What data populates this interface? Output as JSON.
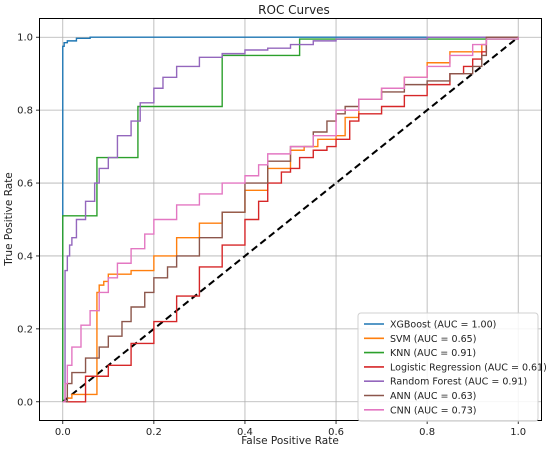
{
  "chart_data": {
    "type": "line",
    "title": "ROC Curves",
    "xlabel": "False Positive Rate",
    "ylabel": "True Positive Rate",
    "xlim": [
      -0.05,
      1.05
    ],
    "ylim": [
      -0.05,
      1.05
    ],
    "xticks": [
      "0.0",
      "0.2",
      "0.4",
      "0.6",
      "0.8",
      "1.0"
    ],
    "yticks": [
      "0.0",
      "0.2",
      "0.4",
      "0.6",
      "0.8",
      "1.0"
    ],
    "grid": true,
    "legend_position": "lower-right",
    "series": [
      {
        "name": "XGBoost (AUC = 1.00)",
        "color": "#1f77b4",
        "x": [
          0,
          0,
          0.003,
          0.003,
          0.01,
          0.01,
          0.03,
          0.03,
          0.06,
          0.06,
          1.0
        ],
        "y": [
          0,
          0.975,
          0.975,
          0.985,
          0.985,
          0.99,
          0.99,
          0.997,
          0.997,
          1.0,
          1.0
        ]
      },
      {
        "name": "SVM (AUC = 0.65)",
        "color": "#ff7f0e",
        "x": [
          0,
          0.01,
          0.02,
          0.07,
          0.075,
          0.075,
          0.08,
          0.09,
          0.1,
          0.15,
          0.2,
          0.25,
          0.3,
          0.35,
          0.4,
          0.45,
          0.5,
          0.53,
          0.56,
          0.6,
          0.62,
          0.65,
          0.7,
          0.75,
          0.8,
          0.85,
          0.9,
          0.92,
          0.93,
          1.0
        ],
        "y": [
          0,
          0.01,
          0.02,
          0.02,
          0.02,
          0.3,
          0.32,
          0.33,
          0.35,
          0.36,
          0.4,
          0.45,
          0.49,
          0.52,
          0.58,
          0.64,
          0.69,
          0.7,
          0.72,
          0.73,
          0.78,
          0.83,
          0.86,
          0.89,
          0.93,
          0.96,
          0.96,
          0.98,
          1.0,
          1.0
        ]
      },
      {
        "name": "KNN (AUC = 0.91)",
        "color": "#2ca02c",
        "x": [
          0,
          0,
          0.075,
          0.165,
          0.35,
          0.52,
          1.0
        ],
        "y": [
          0,
          0.51,
          0.67,
          0.81,
          0.95,
          0.995,
          1.0
        ]
      },
      {
        "name": "Logistic Regression (AUC = 0.61)",
        "color": "#d62728",
        "x": [
          0,
          0.05,
          0.1,
          0.15,
          0.2,
          0.25,
          0.3,
          0.35,
          0.4,
          0.43,
          0.45,
          0.48,
          0.5,
          0.52,
          0.55,
          0.58,
          0.6,
          0.63,
          0.65,
          0.7,
          0.75,
          0.8,
          0.85,
          0.88,
          0.9,
          0.92,
          0.93,
          1.0
        ],
        "y": [
          0,
          0.07,
          0.1,
          0.16,
          0.22,
          0.29,
          0.37,
          0.43,
          0.5,
          0.55,
          0.6,
          0.63,
          0.64,
          0.67,
          0.69,
          0.7,
          0.72,
          0.77,
          0.79,
          0.81,
          0.84,
          0.87,
          0.9,
          0.92,
          0.94,
          0.96,
          1.0,
          1.0
        ]
      },
      {
        "name": "Random Forest (AUC = 0.91)",
        "color": "#9467bd",
        "x": [
          0,
          0.005,
          0.005,
          0.01,
          0.015,
          0.02,
          0.03,
          0.05,
          0.07,
          0.08,
          0.1,
          0.12,
          0.15,
          0.17,
          0.2,
          0.22,
          0.25,
          0.3,
          0.35,
          0.4,
          0.45,
          0.5,
          0.55,
          0.6,
          0.7,
          0.8,
          0.9,
          1.0
        ],
        "y": [
          0,
          0.25,
          0.36,
          0.4,
          0.43,
          0.45,
          0.5,
          0.55,
          0.6,
          0.64,
          0.67,
          0.73,
          0.77,
          0.82,
          0.86,
          0.89,
          0.92,
          0.945,
          0.955,
          0.965,
          0.97,
          0.98,
          0.99,
          0.995,
          0.995,
          1.0,
          1.0,
          1.0
        ]
      },
      {
        "name": "ANN (AUC = 0.63)",
        "color": "#8c564b",
        "x": [
          0,
          0.01,
          0.02,
          0.05,
          0.08,
          0.1,
          0.13,
          0.15,
          0.18,
          0.2,
          0.23,
          0.25,
          0.3,
          0.35,
          0.4,
          0.45,
          0.5,
          0.55,
          0.58,
          0.6,
          0.62,
          0.65,
          0.7,
          0.75,
          0.8,
          0.85,
          0.9,
          0.92,
          0.93,
          1.0
        ],
        "y": [
          0,
          0.05,
          0.08,
          0.12,
          0.15,
          0.18,
          0.22,
          0.26,
          0.3,
          0.34,
          0.37,
          0.4,
          0.45,
          0.52,
          0.6,
          0.66,
          0.7,
          0.74,
          0.77,
          0.79,
          0.81,
          0.83,
          0.85,
          0.87,
          0.88,
          0.9,
          0.92,
          0.95,
          1.0,
          1.0
        ]
      },
      {
        "name": "CNN (AUC = 0.73)",
        "color": "#e377c2",
        "x": [
          0,
          0.005,
          0.01,
          0.02,
          0.04,
          0.06,
          0.08,
          0.1,
          0.12,
          0.15,
          0.18,
          0.2,
          0.25,
          0.3,
          0.35,
          0.4,
          0.43,
          0.45,
          0.5,
          0.55,
          0.6,
          0.65,
          0.7,
          0.75,
          0.8,
          0.85,
          0.9,
          0.93,
          1.0
        ],
        "y": [
          0,
          0.05,
          0.1,
          0.15,
          0.21,
          0.25,
          0.3,
          0.34,
          0.38,
          0.42,
          0.46,
          0.5,
          0.54,
          0.57,
          0.6,
          0.62,
          0.65,
          0.68,
          0.7,
          0.73,
          0.8,
          0.83,
          0.86,
          0.89,
          0.92,
          0.95,
          0.98,
          0.995,
          1.0
        ]
      }
    ],
    "reference_line": {
      "x": [
        0,
        1
      ],
      "y": [
        0,
        1
      ],
      "style": "dashed",
      "color": "#000000"
    }
  }
}
